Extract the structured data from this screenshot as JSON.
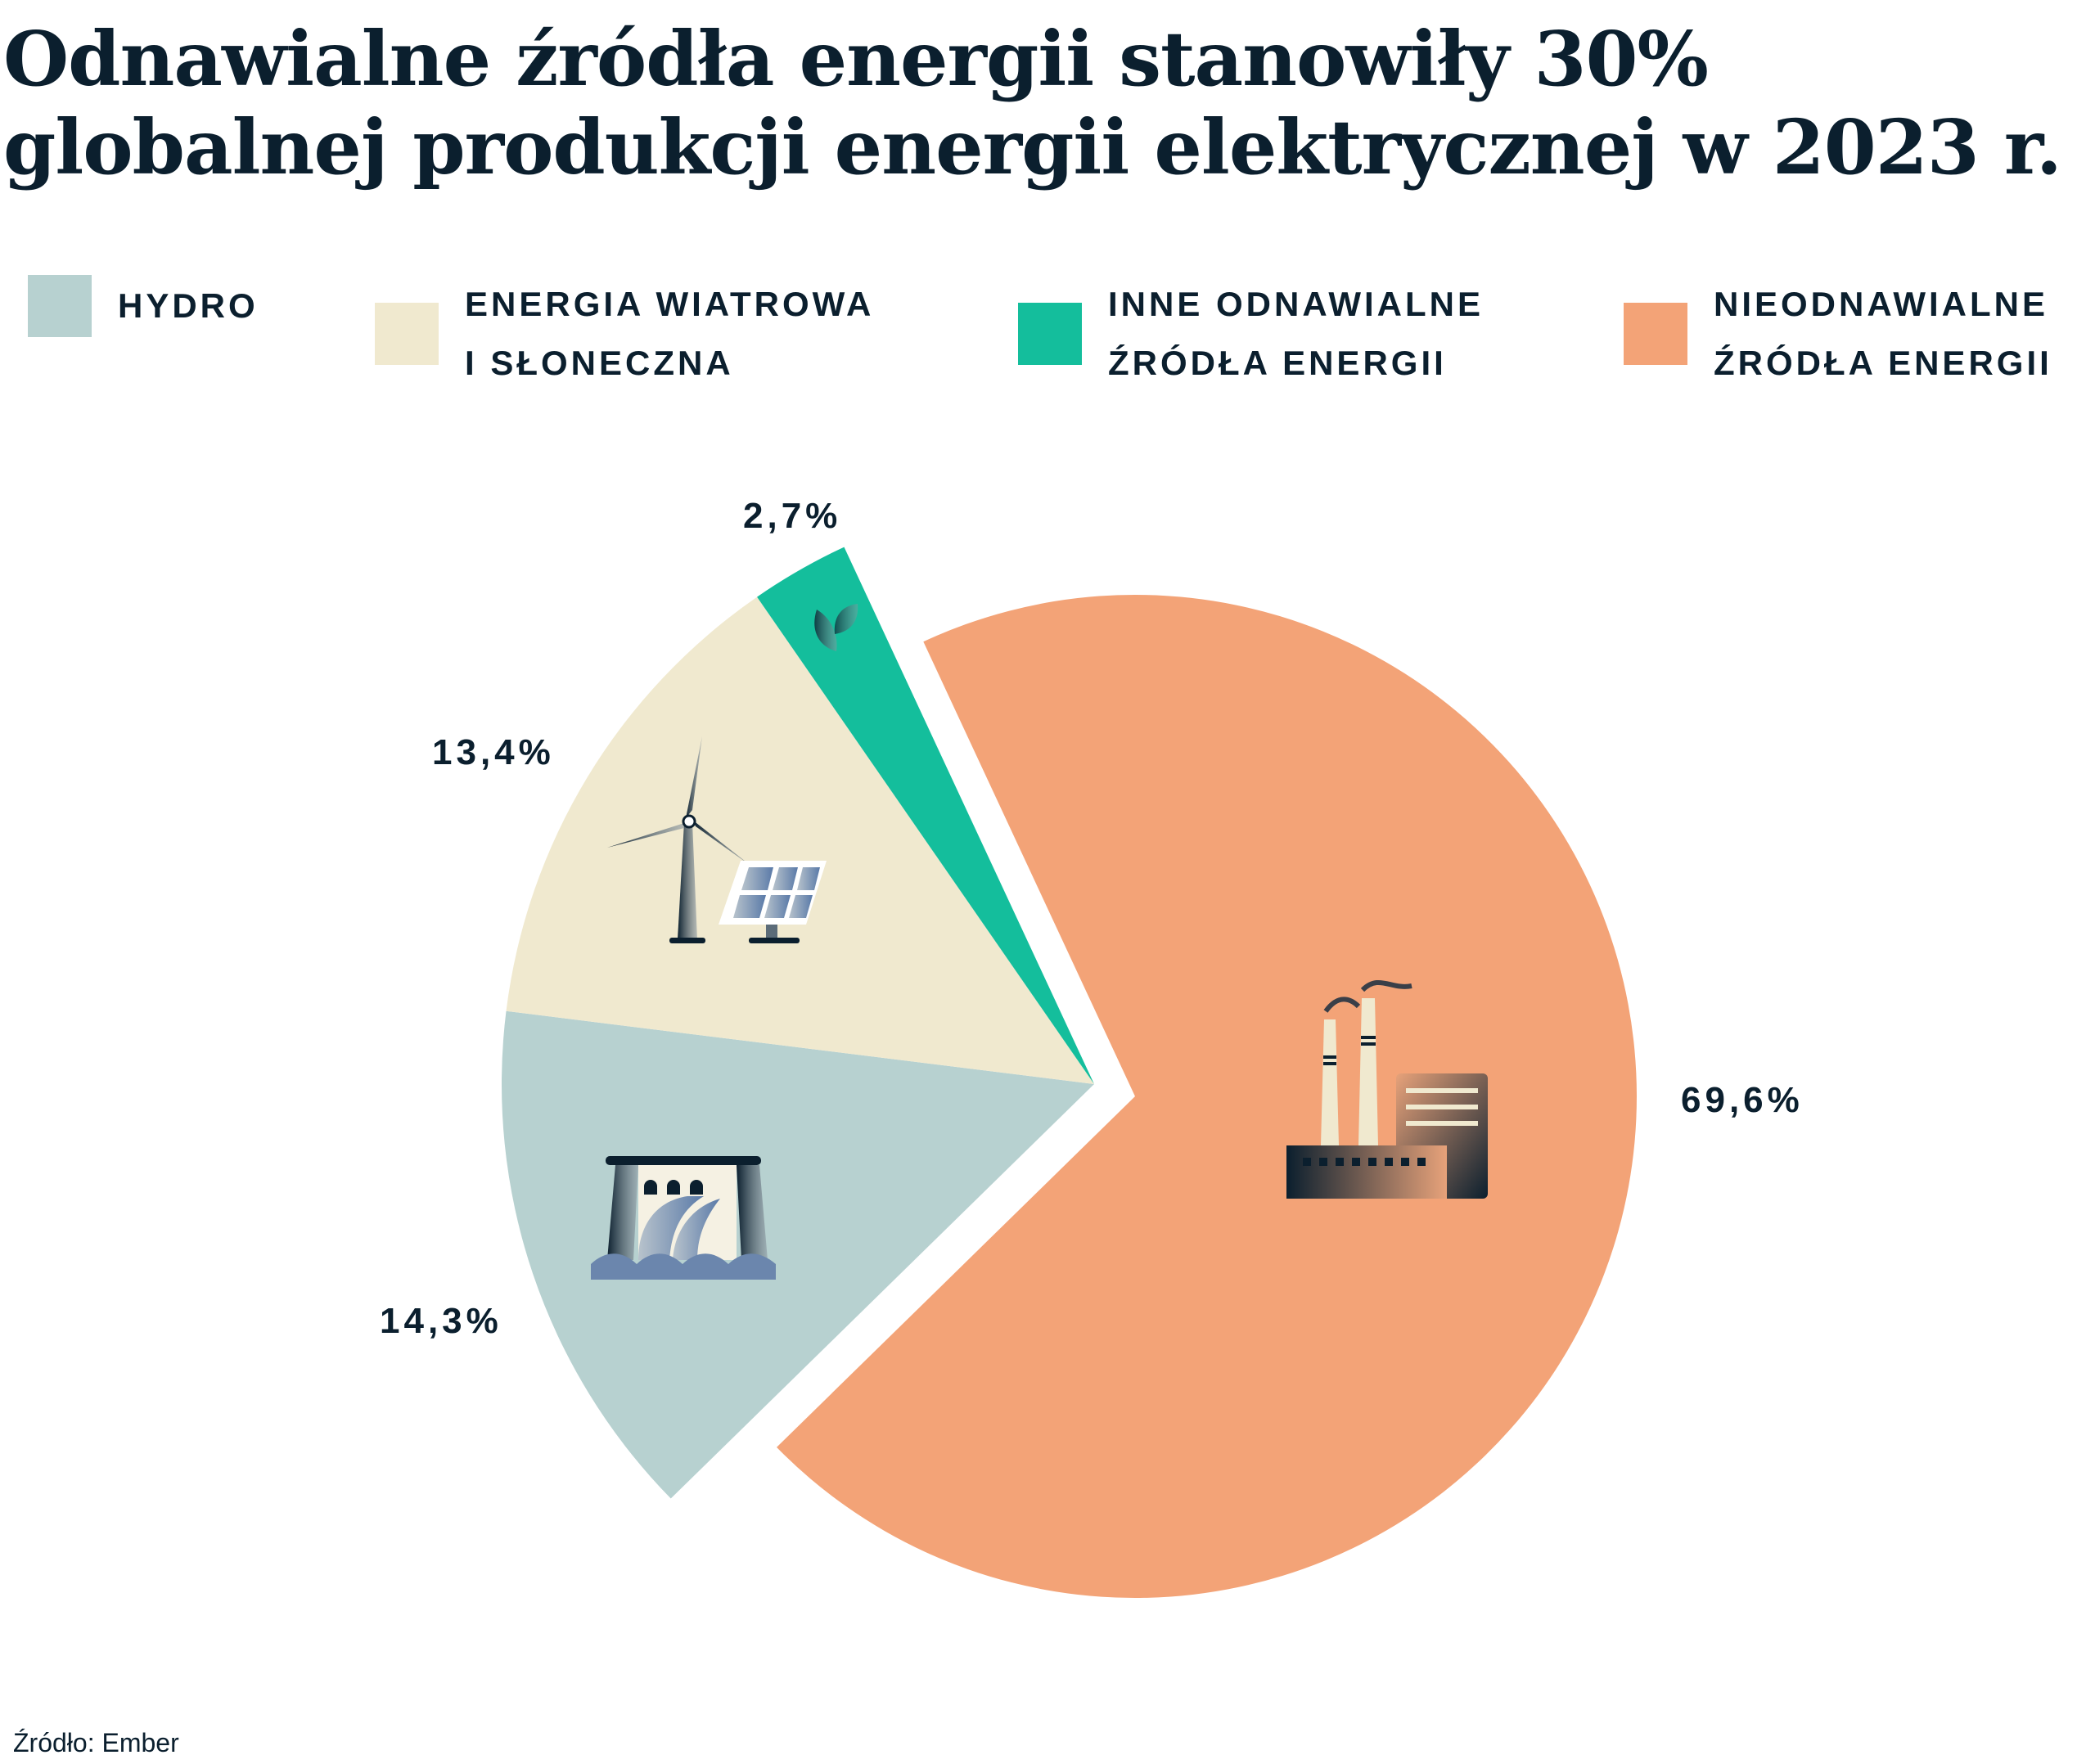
{
  "title": "Odnawialne źródła energii stanowiły 30% globalnej produkcji energii elektrycznej w 2023 r.",
  "source": "Źródło: Ember",
  "chart_data": {
    "type": "pie",
    "title": "Odnawialne źródła energii stanowiły 30% globalnej produkcji energii elektrycznej w 2023 r.",
    "legend_position": "top",
    "slices": [
      {
        "name": "HYDRO",
        "value": 14.3,
        "label": "14,3%",
        "color": "#b7d1d0",
        "icon": "hydro-dam-icon"
      },
      {
        "name": "ENERGIA WIATROWA\nI SŁONECZNA",
        "value": 13.4,
        "label": "13,4%",
        "color": "#f0e9cf",
        "icon": "wind-solar-icon"
      },
      {
        "name": "INNE ODNAWIALNE\nŹRÓDŁA ENERGII",
        "value": 2.7,
        "label": "2,7%",
        "color": "#14be9c",
        "icon": "leaf-icon"
      },
      {
        "name": "NIEODNAWIALNE\nŹRÓDŁA ENERGII",
        "value": 69.6,
        "label": "69,6%",
        "color": "#f3a377",
        "icon": "factory-icon"
      }
    ]
  }
}
